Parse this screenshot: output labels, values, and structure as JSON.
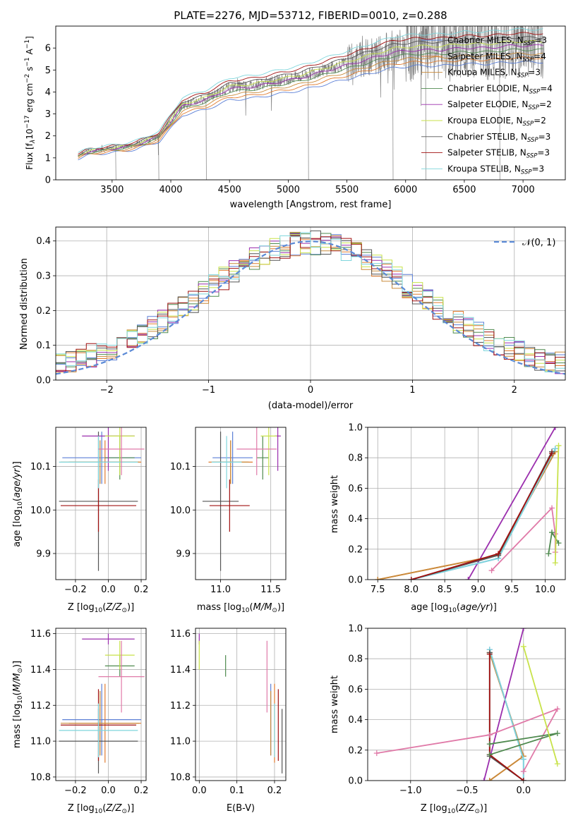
{
  "figure_title": "PLATE=2276, MJD=53712, FIBERID=0010, z=0.288",
  "colors": {
    "Chabrier MILES": "#5b7fd6",
    "Salpeter MILES": "#e07b2e",
    "Kroupa MILES": "#c98a3a",
    "Chabrier ELODIE": "#4f8a4f",
    "Salpeter ELODIE": "#9b2fae",
    "Kroupa ELODIE": "#c8e24a",
    "Chabrier STELIB": "#555555",
    "Salpeter STELIB": "#a01010",
    "Kroupa STELIB": "#7fd6dc",
    "pink": "#e07aa8",
    "observed": "#808080",
    "gaussian": "#5b8ad6"
  },
  "chart_data": [
    {
      "id": "spectrum",
      "type": "line",
      "title": "PLATE=2276, MJD=53712, FIBERID=0010, z=0.288",
      "xlabel": "wavelength [Angstrom, rest frame]",
      "ylabel": "Flux [f$_\\lambda$10$^{-17}$ erg cm$^{-2}$ s$^{-1}$ A$^{-1}$]",
      "ylabel_parts": {
        "a": "Flux [f",
        "b": "λ",
        "c": "10",
        "d": "−17",
        "e": " erg cm",
        "f": "−2",
        "g": " s",
        "h": "−1",
        "i": " A",
        "j": "−1",
        "k": "]"
      },
      "xlim": [
        3020,
        7360
      ],
      "ylim": [
        0,
        7
      ],
      "xticks": [
        3500,
        4000,
        4500,
        5000,
        5500,
        6000,
        6500,
        7000
      ],
      "yticks": [
        0,
        1,
        2,
        3,
        4,
        5,
        6
      ],
      "grid": false,
      "legend_position": "upper right",
      "legend": [
        {
          "name": "Chabrier MILES",
          "nssp": "3"
        },
        {
          "name": "Salpeter MILES",
          "nssp": "4"
        },
        {
          "name": "Kroupa MILES",
          "nssp": "3"
        },
        {
          "name": "Chabrier ELODIE",
          "nssp": "4"
        },
        {
          "name": "Salpeter ELODIE",
          "nssp": "2"
        },
        {
          "name": "Kroupa ELODIE",
          "nssp": "2"
        },
        {
          "name": "Chabrier STELIB",
          "nssp": "3"
        },
        {
          "name": "Salpeter STELIB",
          "nssp": "3"
        },
        {
          "name": "Kroupa STELIB",
          "nssp": "3"
        }
      ],
      "continuum": {
        "x": [
          3210,
          3300,
          3450,
          3600,
          3700,
          3800,
          3900,
          4000,
          4100,
          4300,
          4500,
          4700,
          4900,
          5100,
          5300,
          5500,
          5700,
          5900,
          6100,
          6300,
          6500,
          6700,
          6900,
          7100
        ],
        "y": [
          1.1,
          1.3,
          1.4,
          1.5,
          1.6,
          1.8,
          2.0,
          2.7,
          3.4,
          3.7,
          4.2,
          4.3,
          4.5,
          4.7,
          5.0,
          5.3,
          5.6,
          5.9,
          6.0,
          6.0,
          6.1,
          6.1,
          6.2,
          6.2
        ]
      }
    },
    {
      "id": "residuals",
      "type": "area",
      "xlabel": "(data-model)/error",
      "ylabel": "Normed distribution",
      "xlim": [
        -2.5,
        2.5
      ],
      "ylim": [
        0,
        0.44
      ],
      "xticks": [
        -2,
        -1,
        0,
        1,
        2
      ],
      "xtick_labels": [
        "−2",
        "−1",
        "0",
        "1",
        "2"
      ],
      "yticks": [
        0.0,
        0.1,
        0.2,
        0.3,
        0.4
      ],
      "ytick_labels": [
        "0.0",
        "0.1",
        "0.2",
        "0.3",
        "0.4"
      ],
      "grid": true,
      "legend_position": "upper right",
      "legend_label": "𝒩(0, 1)",
      "gaussian": {
        "mean": 0,
        "sigma": 1
      },
      "bin_width": 0.1,
      "bin_start": -2.5
    },
    {
      "id": "age_vs_Z",
      "type": "scatter",
      "xlabel": "Z [log10(Z/Z⊙)]",
      "ylabel": "age [log10(age/yr)]",
      "xlim": [
        -0.32,
        0.23
      ],
      "ylim": [
        9.84,
        10.19
      ],
      "xticks": [
        -0.2,
        0.0,
        0.2
      ],
      "xtick_labels": [
        "−0.2",
        "0.0",
        "0.2"
      ],
      "yticks": [
        9.9,
        10.0,
        10.1
      ],
      "ytick_labels": [
        "9.9",
        "10.0",
        "10.1"
      ],
      "grid": true
    },
    {
      "id": "age_vs_mass",
      "type": "scatter",
      "xlabel": "mass [log10(M/M⊙)]",
      "xlim": [
        10.75,
        11.65
      ],
      "ylim": [
        9.84,
        10.19
      ],
      "xticks": [
        11.0,
        11.5
      ],
      "xtick_labels": [
        "11.0",
        "11.5"
      ],
      "yticks": [
        9.9,
        10.0,
        10.1
      ],
      "ytick_labels": [
        "9.9",
        "10.0",
        "10.1"
      ],
      "grid": true
    },
    {
      "id": "weight_vs_age",
      "type": "line",
      "xlabel": "age [log10(age/yr)]",
      "ylabel": "mass weight",
      "xlim": [
        7.35,
        10.3
      ],
      "ylim": [
        0,
        1
      ],
      "xticks": [
        7.5,
        8.0,
        8.5,
        9.0,
        9.5,
        10.0
      ],
      "xtick_labels": [
        "7.5",
        "8.0",
        "8.5",
        "9.0",
        "9.5",
        "10.0"
      ],
      "yticks": [
        0.0,
        0.2,
        0.4,
        0.6,
        0.8,
        1.0
      ],
      "ytick_labels": [
        "0.0",
        "0.2",
        "0.4",
        "0.6",
        "0.8",
        "1.0"
      ],
      "grid": true
    },
    {
      "id": "mass_vs_Z",
      "type": "scatter",
      "xlabel": "Z [log10(Z/Z⊙)]",
      "ylabel": "mass [log10(M/M⊙)]",
      "xlim": [
        -0.32,
        0.23
      ],
      "ylim": [
        10.78,
        11.63
      ],
      "xticks": [
        -0.2,
        0.0,
        0.2
      ],
      "xtick_labels": [
        "−0.2",
        "0.0",
        "0.2"
      ],
      "yticks": [
        10.8,
        11.0,
        11.2,
        11.4,
        11.6
      ],
      "ytick_labels": [
        "10.8",
        "11.0",
        "11.2",
        "11.4",
        "11.6"
      ],
      "grid": true
    },
    {
      "id": "mass_vs_ebv",
      "type": "scatter",
      "xlabel": "E(B-V)",
      "xlim": [
        -0.01,
        0.23
      ],
      "ylim": [
        10.78,
        11.63
      ],
      "xticks": [
        0.0,
        0.1,
        0.2
      ],
      "xtick_labels": [
        "0.0",
        "0.1",
        "0.2"
      ],
      "yticks": [
        10.8,
        11.0,
        11.2,
        11.4,
        11.6
      ],
      "ytick_labels": [
        "10.8",
        "11.0",
        "11.2",
        "11.4",
        "11.6"
      ],
      "grid": true
    },
    {
      "id": "weight_vs_Z",
      "type": "line",
      "xlabel": "Z [log10(Z/Z⊙)]",
      "ylabel": "mass weight",
      "xlim": [
        -1.38,
        0.37
      ],
      "ylim": [
        0,
        1
      ],
      "xticks": [
        -1.0,
        -0.5,
        0.0
      ],
      "xtick_labels": [
        "−1.0",
        "−0.5",
        "0.0"
      ],
      "yticks": [
        0.0,
        0.2,
        0.4,
        0.6,
        0.8,
        1.0
      ],
      "ytick_labels": [
        "0.0",
        "0.2",
        "0.4",
        "0.6",
        "0.8",
        "1.0"
      ],
      "grid": true
    }
  ],
  "fits": [
    {
      "model": "Chabrier MILES",
      "Z": -0.04,
      "Zerr": 0.24,
      "age": 10.12,
      "ageErr": 0.06,
      "mass": 11.12,
      "massErr": 0.2,
      "ebv": 0.19
    },
    {
      "model": "Salpeter MILES",
      "Z": -0.02,
      "Zerr": 0.22,
      "age": 10.11,
      "ageErr": 0.05,
      "mass": 11.1,
      "massErr": 0.22,
      "ebv": 0.2
    },
    {
      "model": "Kroupa MILES",
      "Z": -0.05,
      "Zerr": 0.24,
      "age": 10.11,
      "ageErr": 0.05,
      "mass": 11.1,
      "massErr": 0.18,
      "ebv": 0.19
    },
    {
      "model": "Chabrier ELODIE",
      "Z": 0.07,
      "Zerr": 0.09,
      "age": 10.12,
      "ageErr": 0.05,
      "mass": 11.42,
      "massErr": 0.06,
      "ebv": 0.07
    },
    {
      "model": "Salpeter ELODIE",
      "Z": 0.0,
      "Zerr": 0.16,
      "age": 10.17,
      "ageErr": 0.08,
      "mass": 11.57,
      "massErr": 0.03,
      "ebv": 0.0
    },
    {
      "model": "Kroupa ELODIE",
      "Z": 0.07,
      "Zerr": 0.09,
      "age": 10.17,
      "ageErr": 0.09,
      "mass": 11.48,
      "massErr": 0.08,
      "ebv": 0.0
    },
    {
      "model": "Chabrier STELIB",
      "Z": -0.06,
      "Zerr": 0.24,
      "age": 10.02,
      "ageErr": 0.16,
      "mass": 11.0,
      "massErr": 0.18,
      "ebv": 0.22
    },
    {
      "model": "Salpeter STELIB",
      "Z": -0.06,
      "Zerr": 0.23,
      "age": 10.01,
      "ageErr": 0.06,
      "mass": 11.09,
      "massErr": 0.2,
      "ebv": 0.21
    },
    {
      "model": "Kroupa STELIB",
      "Z": -0.06,
      "Zerr": 0.24,
      "age": 10.11,
      "ageErr": 0.06,
      "mass": 11.06,
      "massErr": 0.15,
      "ebv": 0.2
    },
    {
      "model": "pink",
      "Z": 0.08,
      "Zerr": 0.14,
      "age": 10.14,
      "ageErr": 0.06,
      "mass": 11.36,
      "massErr": 0.2,
      "ebv": 0.18
    }
  ],
  "weight_tracks": [
    {
      "model": "Salpeter ELODIE",
      "pts": [
        [
          8.85,
          0.0,
          -0.35
        ],
        [
          10.15,
          1.0,
          0.0
        ]
      ]
    },
    {
      "model": "Salpeter MILES",
      "pts": [
        [
          7.5,
          0.0,
          -0.3
        ],
        [
          9.3,
          0.16,
          0.0
        ],
        [
          10.15,
          0.84,
          -0.3
        ]
      ]
    },
    {
      "model": "Kroupa MILES",
      "pts": [
        [
          7.5,
          0.0,
          -0.3
        ],
        [
          9.3,
          0.16,
          0.0
        ],
        [
          10.15,
          0.84,
          -0.3
        ]
      ]
    },
    {
      "model": "Chabrier MILES",
      "pts": [
        [
          8.0,
          0.0,
          0.0
        ],
        [
          9.3,
          0.14,
          0.0
        ],
        [
          10.15,
          0.86,
          -0.3
        ]
      ]
    },
    {
      "model": "Kroupa STELIB",
      "pts": [
        [
          8.0,
          0.0,
          0.0
        ],
        [
          9.3,
          0.14,
          0.0
        ],
        [
          10.15,
          0.86,
          -0.3
        ]
      ]
    },
    {
      "model": "Chabrier STELIB",
      "pts": [
        [
          8.0,
          0.0,
          0.0
        ],
        [
          9.3,
          0.16,
          -0.3
        ],
        [
          10.1,
          0.84,
          -0.3
        ]
      ]
    },
    {
      "model": "Salpeter STELIB",
      "pts": [
        [
          8.0,
          0.0,
          0.0
        ],
        [
          9.3,
          0.17,
          -0.3
        ],
        [
          10.1,
          0.83,
          -0.3
        ]
      ]
    },
    {
      "model": "pink",
      "pts": [
        [
          9.2,
          0.06,
          0.0
        ],
        [
          10.1,
          0.47,
          0.3
        ],
        [
          10.15,
          0.3,
          -0.3
        ],
        [
          10.15,
          0.18,
          -1.3
        ]
      ]
    },
    {
      "model": "Chabrier ELODIE",
      "pts": [
        [
          10.05,
          0.17,
          -0.3
        ],
        [
          10.1,
          0.31,
          0.3
        ],
        [
          10.2,
          0.24,
          -0.3
        ]
      ]
    },
    {
      "model": "Kroupa ELODIE",
      "pts": [
        [
          10.15,
          0.11,
          0.3
        ],
        [
          10.2,
          0.88,
          0.0
        ]
      ]
    }
  ]
}
